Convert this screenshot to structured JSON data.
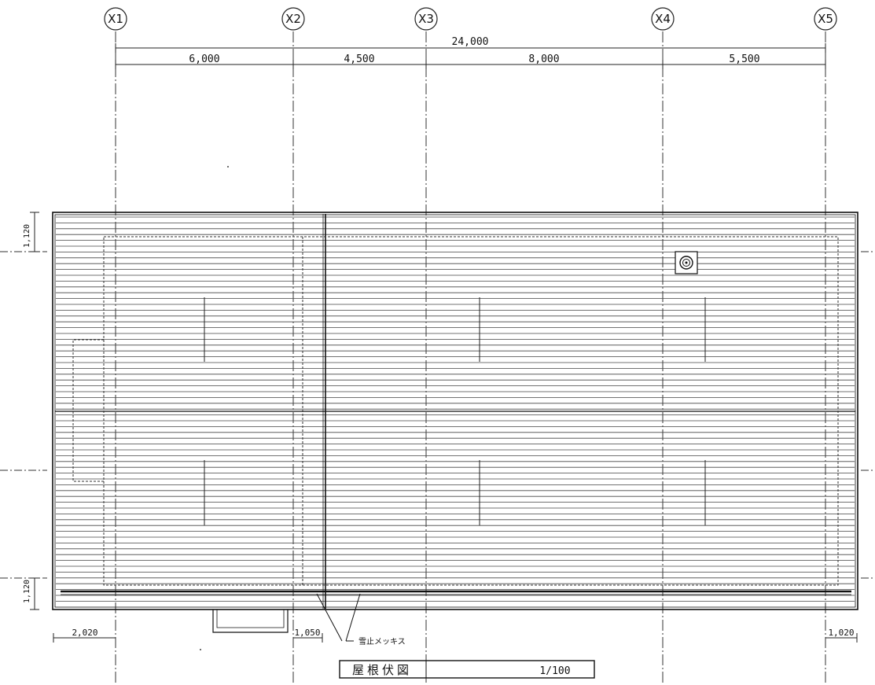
{
  "grid_lines": [
    {
      "id": "X1",
      "label": "X1"
    },
    {
      "id": "X2",
      "label": "X2"
    },
    {
      "id": "X3",
      "label": "X3"
    },
    {
      "id": "X4",
      "label": "X4"
    },
    {
      "id": "X5",
      "label": "X5"
    }
  ],
  "dimensions": {
    "overall": "24,000",
    "spans": [
      "6,000",
      "4,500",
      "8,000",
      "5,500"
    ],
    "eave_left": "1,120",
    "eave_bottom_left": "1,120",
    "overhang_left": "2,020",
    "overhang_mid": "1,050",
    "overhang_right": "1,020"
  },
  "annotation": {
    "leader_text": "雪止メッキス"
  },
  "title_block": {
    "title": "屋根伏図",
    "scale": "1/100"
  }
}
